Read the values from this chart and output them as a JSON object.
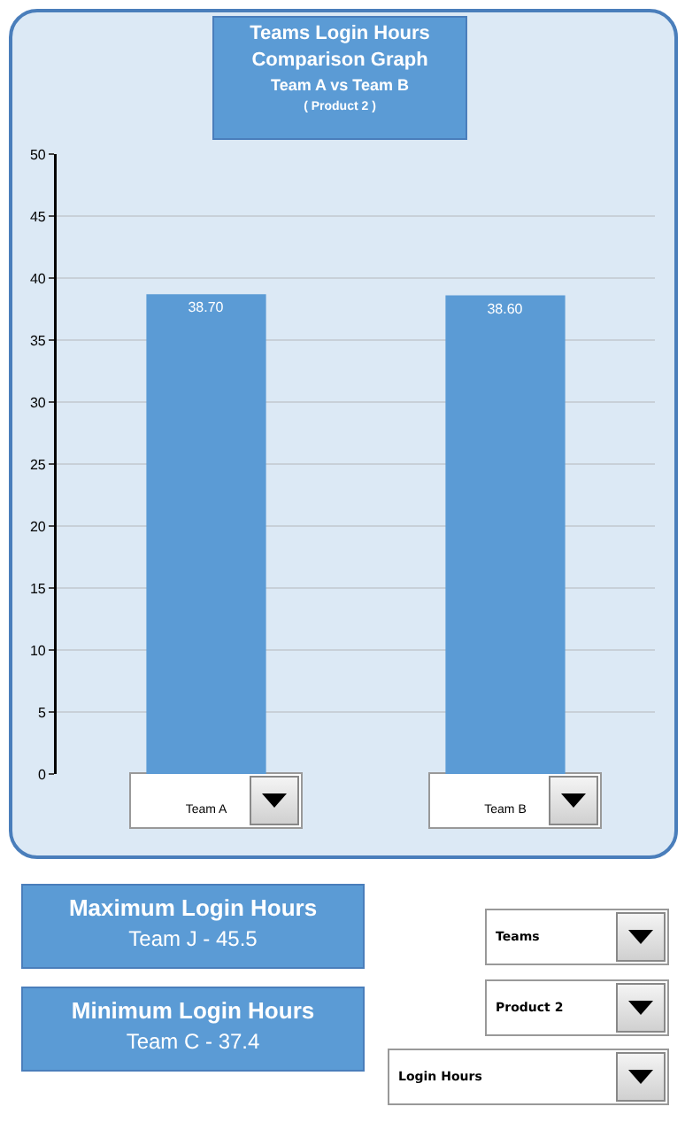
{
  "chart_data": {
    "type": "bar",
    "title": "Teams Login Hours Comparison Graph",
    "subtitle": "Team A vs Team B",
    "annotations": [
      "( Product 2 )",
      "Maximum Login Hours",
      "Team J - 45.5",
      "Minimum Login Hours",
      "Team C - 37.4",
      "Teams",
      "Product 2",
      "Login Hours"
    ],
    "categories": [
      "Team A",
      "Team B"
    ],
    "values": [
      38.7,
      38.6
    ],
    "value_labels": [
      "38.70",
      "38.60"
    ],
    "color": "#5b9bd5",
    "ylim": [
      0,
      50
    ],
    "yticks": [
      0,
      5,
      10,
      15,
      20,
      25,
      30,
      35,
      40,
      45,
      50
    ],
    "grid": "y"
  }
}
